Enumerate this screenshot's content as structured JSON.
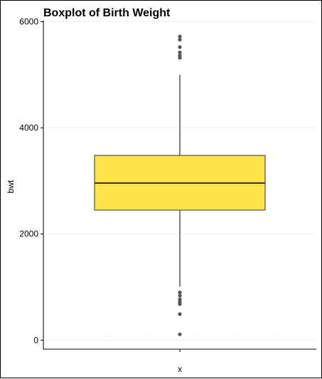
{
  "chart_data": {
    "type": "boxplot",
    "title": "Boxplot of Birth Weight",
    "xlabel": "x",
    "ylabel": "bwt",
    "ylim": [
      -170,
      6020
    ],
    "yticks": [
      0,
      2000,
      4000,
      6000
    ],
    "ytick_labels": [
      "0",
      "2000",
      "4000",
      "6000"
    ],
    "grid": "horizontal dotted",
    "box": {
      "q1": 2450,
      "median": 2960,
      "q3": 3480,
      "whisker_low": 1010,
      "whisker_high": 5000
    },
    "outliers": [
      5720,
      5660,
      5520,
      5420,
      5360,
      5320,
      900,
      840,
      770,
      720,
      680,
      490,
      110
    ],
    "fill_color": "#FFE34B",
    "line_color": "#333333",
    "outlier_color": "#555555"
  }
}
